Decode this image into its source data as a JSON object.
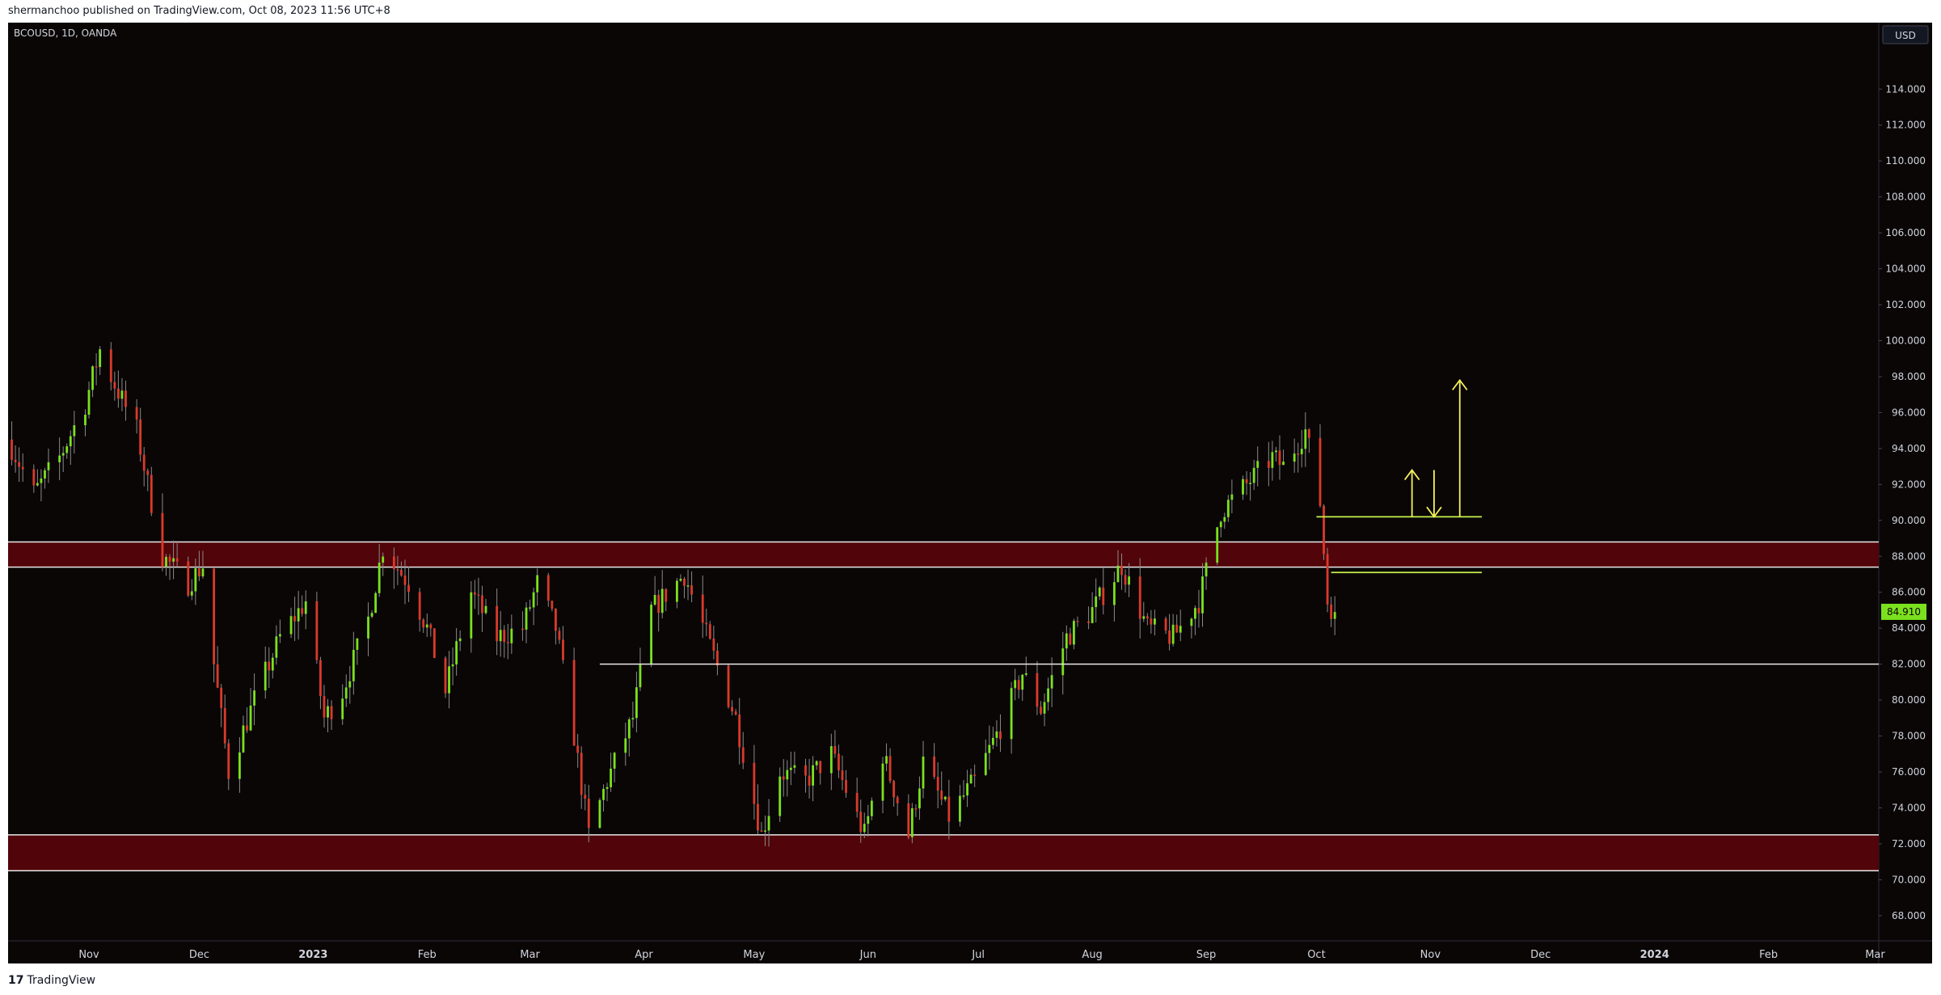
{
  "header": {
    "text": "shermanchoo published on TradingView.com, Oct 08, 2023 11:56 UTC+8"
  },
  "footer": {
    "logo": "17",
    "brand": "TradingView"
  },
  "symbol": {
    "label": "BCOUSD, 1D, OANDA"
  },
  "currency": {
    "label": "USD"
  },
  "colors": {
    "bg": "#0a0606",
    "up": "#7be01e",
    "down": "#d93a2b",
    "zone": "#510409",
    "line": "#e8e8e8",
    "target": "#c6f04a",
    "arrow": "#f3f05a",
    "price_tag": "#7be01e"
  },
  "chart_data": {
    "type": "candlestick",
    "title": "",
    "y_ticks": [
      "68.000",
      "70.000",
      "72.000",
      "74.000",
      "76.000",
      "78.000",
      "80.000",
      "82.000",
      "84.000",
      "86.000",
      "88.000",
      "90.000",
      "92.000",
      "94.000",
      "96.000",
      "98.000",
      "100.000",
      "102.000",
      "104.000",
      "106.000",
      "108.000",
      "110.000",
      "112.000",
      "114.000"
    ],
    "ylim": [
      66.6,
      117.7
    ],
    "x_ticks": [
      {
        "label": "Nov",
        "date": "2022-11-01"
      },
      {
        "label": "Dec",
        "date": "2022-12-01"
      },
      {
        "label": "2023",
        "date": "2023-01-01"
      },
      {
        "label": "Feb",
        "date": "2023-02-01"
      },
      {
        "label": "Mar",
        "date": "2023-03-01"
      },
      {
        "label": "Apr",
        "date": "2023-04-01"
      },
      {
        "label": "May",
        "date": "2023-05-01"
      },
      {
        "label": "Jun",
        "date": "2023-06-01"
      },
      {
        "label": "Jul",
        "date": "2023-07-01"
      },
      {
        "label": "Aug",
        "date": "2023-08-01"
      },
      {
        "label": "Sep",
        "date": "2023-09-01"
      },
      {
        "label": "Oct",
        "date": "2023-10-01"
      },
      {
        "label": "Nov",
        "date": "2023-11-01"
      },
      {
        "label": "Dec",
        "date": "2023-12-01"
      },
      {
        "label": "2024",
        "date": "2024-01-01"
      },
      {
        "label": "Feb",
        "date": "2024-02-01"
      },
      {
        "label": "Mar",
        "date": "2024-03-01"
      }
    ],
    "xlim": [
      "2022-10-10",
      "2024-03-02"
    ],
    "last_price": "84.910",
    "zones": [
      {
        "from": 87.4,
        "to": 88.8
      },
      {
        "from": 70.5,
        "to": 72.5
      }
    ],
    "lines": [
      {
        "y": 82.0,
        "from": "2023-03-20",
        "to": "2024-03-02"
      }
    ],
    "targets": [
      {
        "y": 90.2,
        "from": "2023-10-01",
        "to": "2023-11-15"
      },
      {
        "y": 87.1,
        "from": "2023-10-05",
        "to": "2023-11-15"
      }
    ],
    "arrows": [
      {
        "date": "2023-10-27",
        "from": 90.2,
        "to": 92.8,
        "dir": "up"
      },
      {
        "date": "2023-11-02",
        "from": 92.8,
        "to": 90.2,
        "dir": "down"
      },
      {
        "date": "2023-11-09",
        "from": 90.2,
        "to": 97.8,
        "dir": "up"
      }
    ],
    "anchors": [
      [
        "2022-10-10",
        94.5
      ],
      [
        "2022-10-17",
        91.5
      ],
      [
        "2022-10-24",
        93.5
      ],
      [
        "2022-10-31",
        96.5
      ],
      [
        "2022-11-04",
        99.5
      ],
      [
        "2022-11-07",
        98.0
      ],
      [
        "2022-11-14",
        95.0
      ],
      [
        "2022-11-21",
        88.0
      ],
      [
        "2022-11-28",
        86.5
      ],
      [
        "2022-12-02",
        87.5
      ],
      [
        "2022-12-05",
        82.0
      ],
      [
        "2022-12-09",
        76.0
      ],
      [
        "2022-12-16",
        80.0
      ],
      [
        "2022-12-23",
        83.5
      ],
      [
        "2022-12-30",
        85.5
      ],
      [
        "2023-01-04",
        79.0
      ],
      [
        "2023-01-09",
        80.5
      ],
      [
        "2023-01-16",
        84.5
      ],
      [
        "2023-01-20",
        88.5
      ],
      [
        "2023-01-27",
        86.5
      ],
      [
        "2023-02-01",
        84.0
      ],
      [
        "2023-02-06",
        80.5
      ],
      [
        "2023-02-13",
        86.0
      ],
      [
        "2023-02-20",
        83.5
      ],
      [
        "2023-02-27",
        84.0
      ],
      [
        "2023-03-03",
        86.5
      ],
      [
        "2023-03-08",
        84.0
      ],
      [
        "2023-03-13",
        78.0
      ],
      [
        "2023-03-17",
        72.5
      ],
      [
        "2023-03-22",
        75.5
      ],
      [
        "2023-03-29",
        79.0
      ],
      [
        "2023-04-03",
        85.0
      ],
      [
        "2023-04-12",
        87.0
      ],
      [
        "2023-04-19",
        83.0
      ],
      [
        "2023-04-26",
        79.0
      ],
      [
        "2023-05-03",
        72.5
      ],
      [
        "2023-05-08",
        76.0
      ],
      [
        "2023-05-15",
        75.5
      ],
      [
        "2023-05-22",
        77.0
      ],
      [
        "2023-05-31",
        72.5
      ],
      [
        "2023-06-05",
        77.0
      ],
      [
        "2023-06-12",
        72.5
      ],
      [
        "2023-06-16",
        76.5
      ],
      [
        "2023-06-23",
        73.5
      ],
      [
        "2023-06-30",
        75.5
      ],
      [
        "2023-07-07",
        78.5
      ],
      [
        "2023-07-13",
        81.5
      ],
      [
        "2023-07-18",
        79.5
      ],
      [
        "2023-07-25",
        83.5
      ],
      [
        "2023-08-01",
        85.0
      ],
      [
        "2023-08-09",
        87.5
      ],
      [
        "2023-08-16",
        84.0
      ],
      [
        "2023-08-23",
        83.5
      ],
      [
        "2023-08-30",
        85.5
      ],
      [
        "2023-09-05",
        90.5
      ],
      [
        "2023-09-12",
        92.0
      ],
      [
        "2023-09-19",
        93.5
      ],
      [
        "2023-09-22",
        93.0
      ],
      [
        "2023-09-28",
        95.0
      ],
      [
        "2023-10-02",
        91.0
      ],
      [
        "2023-10-04",
        85.5
      ],
      [
        "2023-10-06",
        84.9
      ]
    ]
  }
}
